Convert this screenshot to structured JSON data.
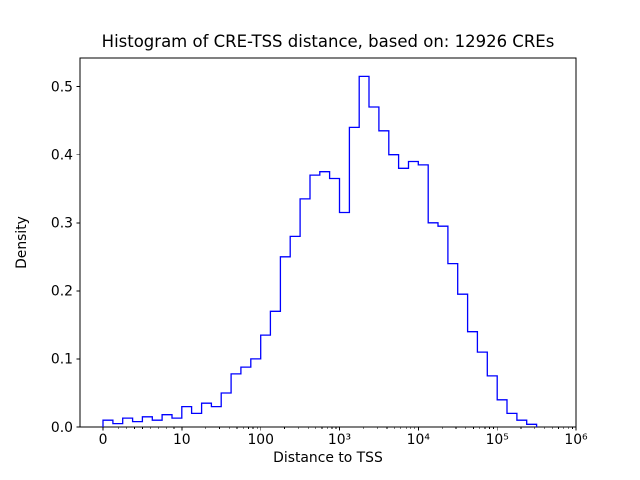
{
  "figure": {
    "background": "#ffffff",
    "axis_color": "#000000",
    "line_color": "#0000ff"
  },
  "chart_data": {
    "type": "bar",
    "subtype": "histogram-step",
    "title": "Histogram of CRE-TSS distance, based on: 12926 CREs",
    "xlabel": "Distance to TSS",
    "ylabel": "Density",
    "x_scale": "symlog",
    "linear_threshold": 10,
    "grid": "off",
    "legend": "none",
    "ylim": [
      0,
      0.542
    ],
    "xlim_labels": [
      "0",
      "10⁶"
    ],
    "bin_edges": [
      0,
      1.25,
      2.5,
      3.75,
      5,
      6.25,
      7.5,
      8.75,
      10,
      13.3,
      17.8,
      23.7,
      31.6,
      42.2,
      56.2,
      75,
      100,
      133,
      178,
      237,
      316,
      422,
      562,
      750,
      1000,
      1334,
      1778,
      2371,
      3162,
      4217,
      5623,
      7499,
      10000,
      13335,
      17783,
      23714,
      31623,
      42170,
      56234,
      74989,
      100000,
      133352,
      177828,
      237137,
      316228
    ],
    "density": [
      0.01,
      0.005,
      0.013,
      0.008,
      0.015,
      0.01,
      0.018,
      0.013,
      0.03,
      0.02,
      0.035,
      0.03,
      0.05,
      0.078,
      0.088,
      0.1,
      0.135,
      0.17,
      0.25,
      0.28,
      0.335,
      0.37,
      0.375,
      0.365,
      0.315,
      0.44,
      0.515,
      0.47,
      0.435,
      0.4,
      0.38,
      0.39,
      0.385,
      0.3,
      0.295,
      0.24,
      0.195,
      0.14,
      0.11,
      0.075,
      0.04,
      0.02,
      0.01,
      0.004
    ],
    "xticks": [
      {
        "value": 0,
        "label": "0"
      },
      {
        "value": 10,
        "label": "10"
      },
      {
        "value": 100,
        "label": "100"
      },
      {
        "value": 1000,
        "label": "10³"
      },
      {
        "value": 10000,
        "label": "10⁴"
      },
      {
        "value": 100000,
        "label": "10⁵"
      },
      {
        "value": 1000000,
        "label": "10⁶"
      }
    ],
    "yticks": [
      {
        "value": 0.0,
        "label": "0.0"
      },
      {
        "value": 0.1,
        "label": "0.1"
      },
      {
        "value": 0.2,
        "label": "0.2"
      },
      {
        "value": 0.3,
        "label": "0.3"
      },
      {
        "value": 0.4,
        "label": "0.4"
      },
      {
        "value": 0.5,
        "label": "0.5"
      }
    ]
  }
}
